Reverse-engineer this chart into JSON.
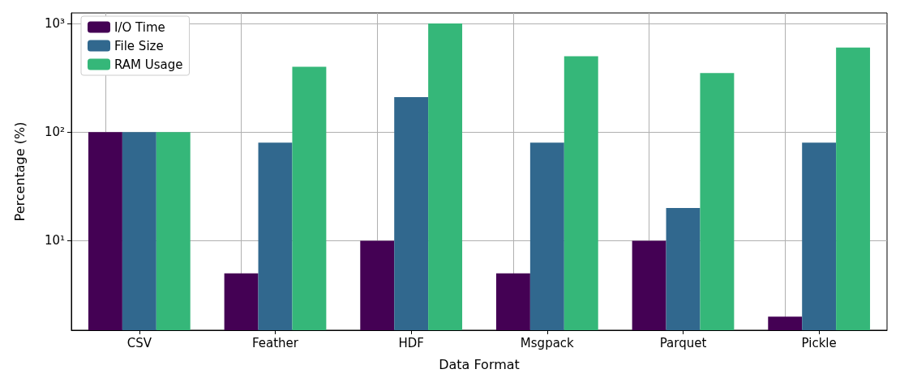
{
  "chart_data": {
    "type": "bar",
    "xlabel": "Data Format",
    "ylabel": "Percentage (%)",
    "categories": [
      "CSV",
      "Feather",
      "HDF",
      "Msgpack",
      "Parquet",
      "Pickle"
    ],
    "series": [
      {
        "name": "I/O Time",
        "color": "#440154",
        "values": [
          100,
          5,
          10,
          5,
          10,
          2
        ]
      },
      {
        "name": "File Size",
        "color": "#31688e",
        "values": [
          100,
          80,
          210,
          80,
          20,
          80
        ]
      },
      {
        "name": "RAM Usage",
        "color": "#35b779",
        "values": [
          100,
          400,
          1000,
          500,
          350,
          600
        ]
      }
    ],
    "log": "y",
    "ylim": [
      1.5,
      1250
    ],
    "yticks": [
      {
        "value": 10,
        "label": "10¹"
      },
      {
        "value": 100,
        "label": "10²"
      },
      {
        "value": 1000,
        "label": "10³"
      }
    ],
    "grid": true,
    "legend": "top left"
  }
}
